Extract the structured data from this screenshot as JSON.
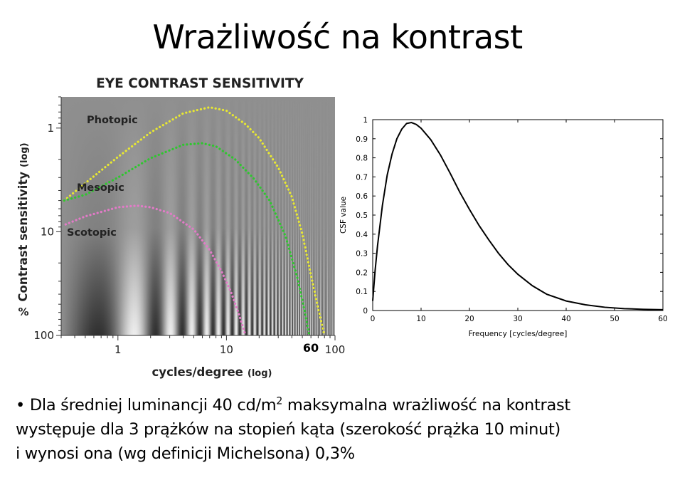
{
  "slide": {
    "title": "Wrażliwość na kontrast",
    "bullet_symbol": "•",
    "bullet_part1": "Dla średniej luminancji 40 cd/m",
    "bullet_sup": "2",
    "bullet_part2": " maksymalna wrażliwość na kontrast",
    "bullet_line2": "występuje dla 3 prążków na stopień kąta (szerokość prążka 10 minut)",
    "bullet_line3": "i wynosi ona (wg definicji Michelsona) 0,3%"
  },
  "chart_data": [
    {
      "type": "line",
      "title": "EYE CONTRAST SENSITIVITY",
      "xlabel": "cycles/degree",
      "xlabel_suffix": "(log)",
      "ylabel": "Contrast sensitivity",
      "ylabel_suffix": "(log)",
      "ylabel_unit": "%",
      "x_scale": "log",
      "y_scale": "log",
      "y_inverted": true,
      "xlim": [
        0.3,
        100
      ],
      "ylim": [
        0.5,
        100
      ],
      "x_ticks": [
        1,
        10,
        100
      ],
      "x_tick_labels": [
        "1",
        "10",
        "100"
      ],
      "y_ticks": [
        1,
        10,
        100
      ],
      "y_tick_labels": [
        "1",
        "10",
        "100"
      ],
      "annotation": "60",
      "annotation_x": 60,
      "background": "sine grating with increasing frequency and contrast",
      "series": [
        {
          "name": "Photopic",
          "color": "#e8e832",
          "x": [
            0.32,
            0.5,
            1,
            2,
            4,
            7,
            10,
            15,
            20,
            30,
            40,
            50,
            60,
            70,
            80
          ],
          "y": [
            5.0,
            3.4,
            1.9,
            1.1,
            0.72,
            0.63,
            0.68,
            0.92,
            1.25,
            2.4,
            4.6,
            10.5,
            26,
            55,
            100
          ]
        },
        {
          "name": "Mesopic",
          "color": "#2fc62f",
          "x": [
            0.32,
            0.5,
            1,
            2,
            4,
            6,
            8,
            12,
            18,
            25,
            35,
            45,
            52,
            58
          ],
          "y": [
            5.0,
            4.4,
            3.0,
            1.95,
            1.45,
            1.4,
            1.5,
            2.0,
            3.1,
            5.0,
            11,
            28,
            55,
            100
          ]
        },
        {
          "name": "Scotopic",
          "color": "#e37ac8",
          "x": [
            0.33,
            0.5,
            1,
            1.5,
            2,
            3,
            5,
            7,
            9,
            11,
            13,
            15
          ],
          "y": [
            8.5,
            7.1,
            5.8,
            5.6,
            5.8,
            6.6,
            9.5,
            15,
            24,
            38,
            62,
            100
          ]
        }
      ]
    },
    {
      "type": "line",
      "title": "",
      "xlabel": "Frequency [cycles/degree]",
      "ylabel": "CSF value",
      "xlim": [
        0,
        60
      ],
      "ylim": [
        0,
        1
      ],
      "x_ticks": [
        0,
        10,
        20,
        30,
        40,
        50,
        60
      ],
      "y_ticks": [
        0,
        0.1,
        0.2,
        0.3,
        0.4,
        0.5,
        0.6,
        0.7,
        0.8,
        0.9,
        1
      ],
      "grid": false,
      "series": [
        {
          "name": "",
          "color": "#000000",
          "x": [
            0,
            0.5,
            1,
            2,
            3,
            4,
            5,
            6,
            7,
            8,
            9,
            10,
            12,
            14,
            16,
            18,
            20,
            22,
            24,
            26,
            28,
            30,
            33,
            36,
            40,
            44,
            48,
            52,
            56,
            60
          ],
          "y": [
            0.05,
            0.21,
            0.34,
            0.55,
            0.71,
            0.82,
            0.9,
            0.95,
            0.98,
            0.985,
            0.975,
            0.955,
            0.895,
            0.815,
            0.72,
            0.62,
            0.53,
            0.445,
            0.37,
            0.3,
            0.24,
            0.19,
            0.13,
            0.085,
            0.05,
            0.03,
            0.017,
            0.01,
            0.006,
            0.004
          ]
        }
      ]
    }
  ]
}
